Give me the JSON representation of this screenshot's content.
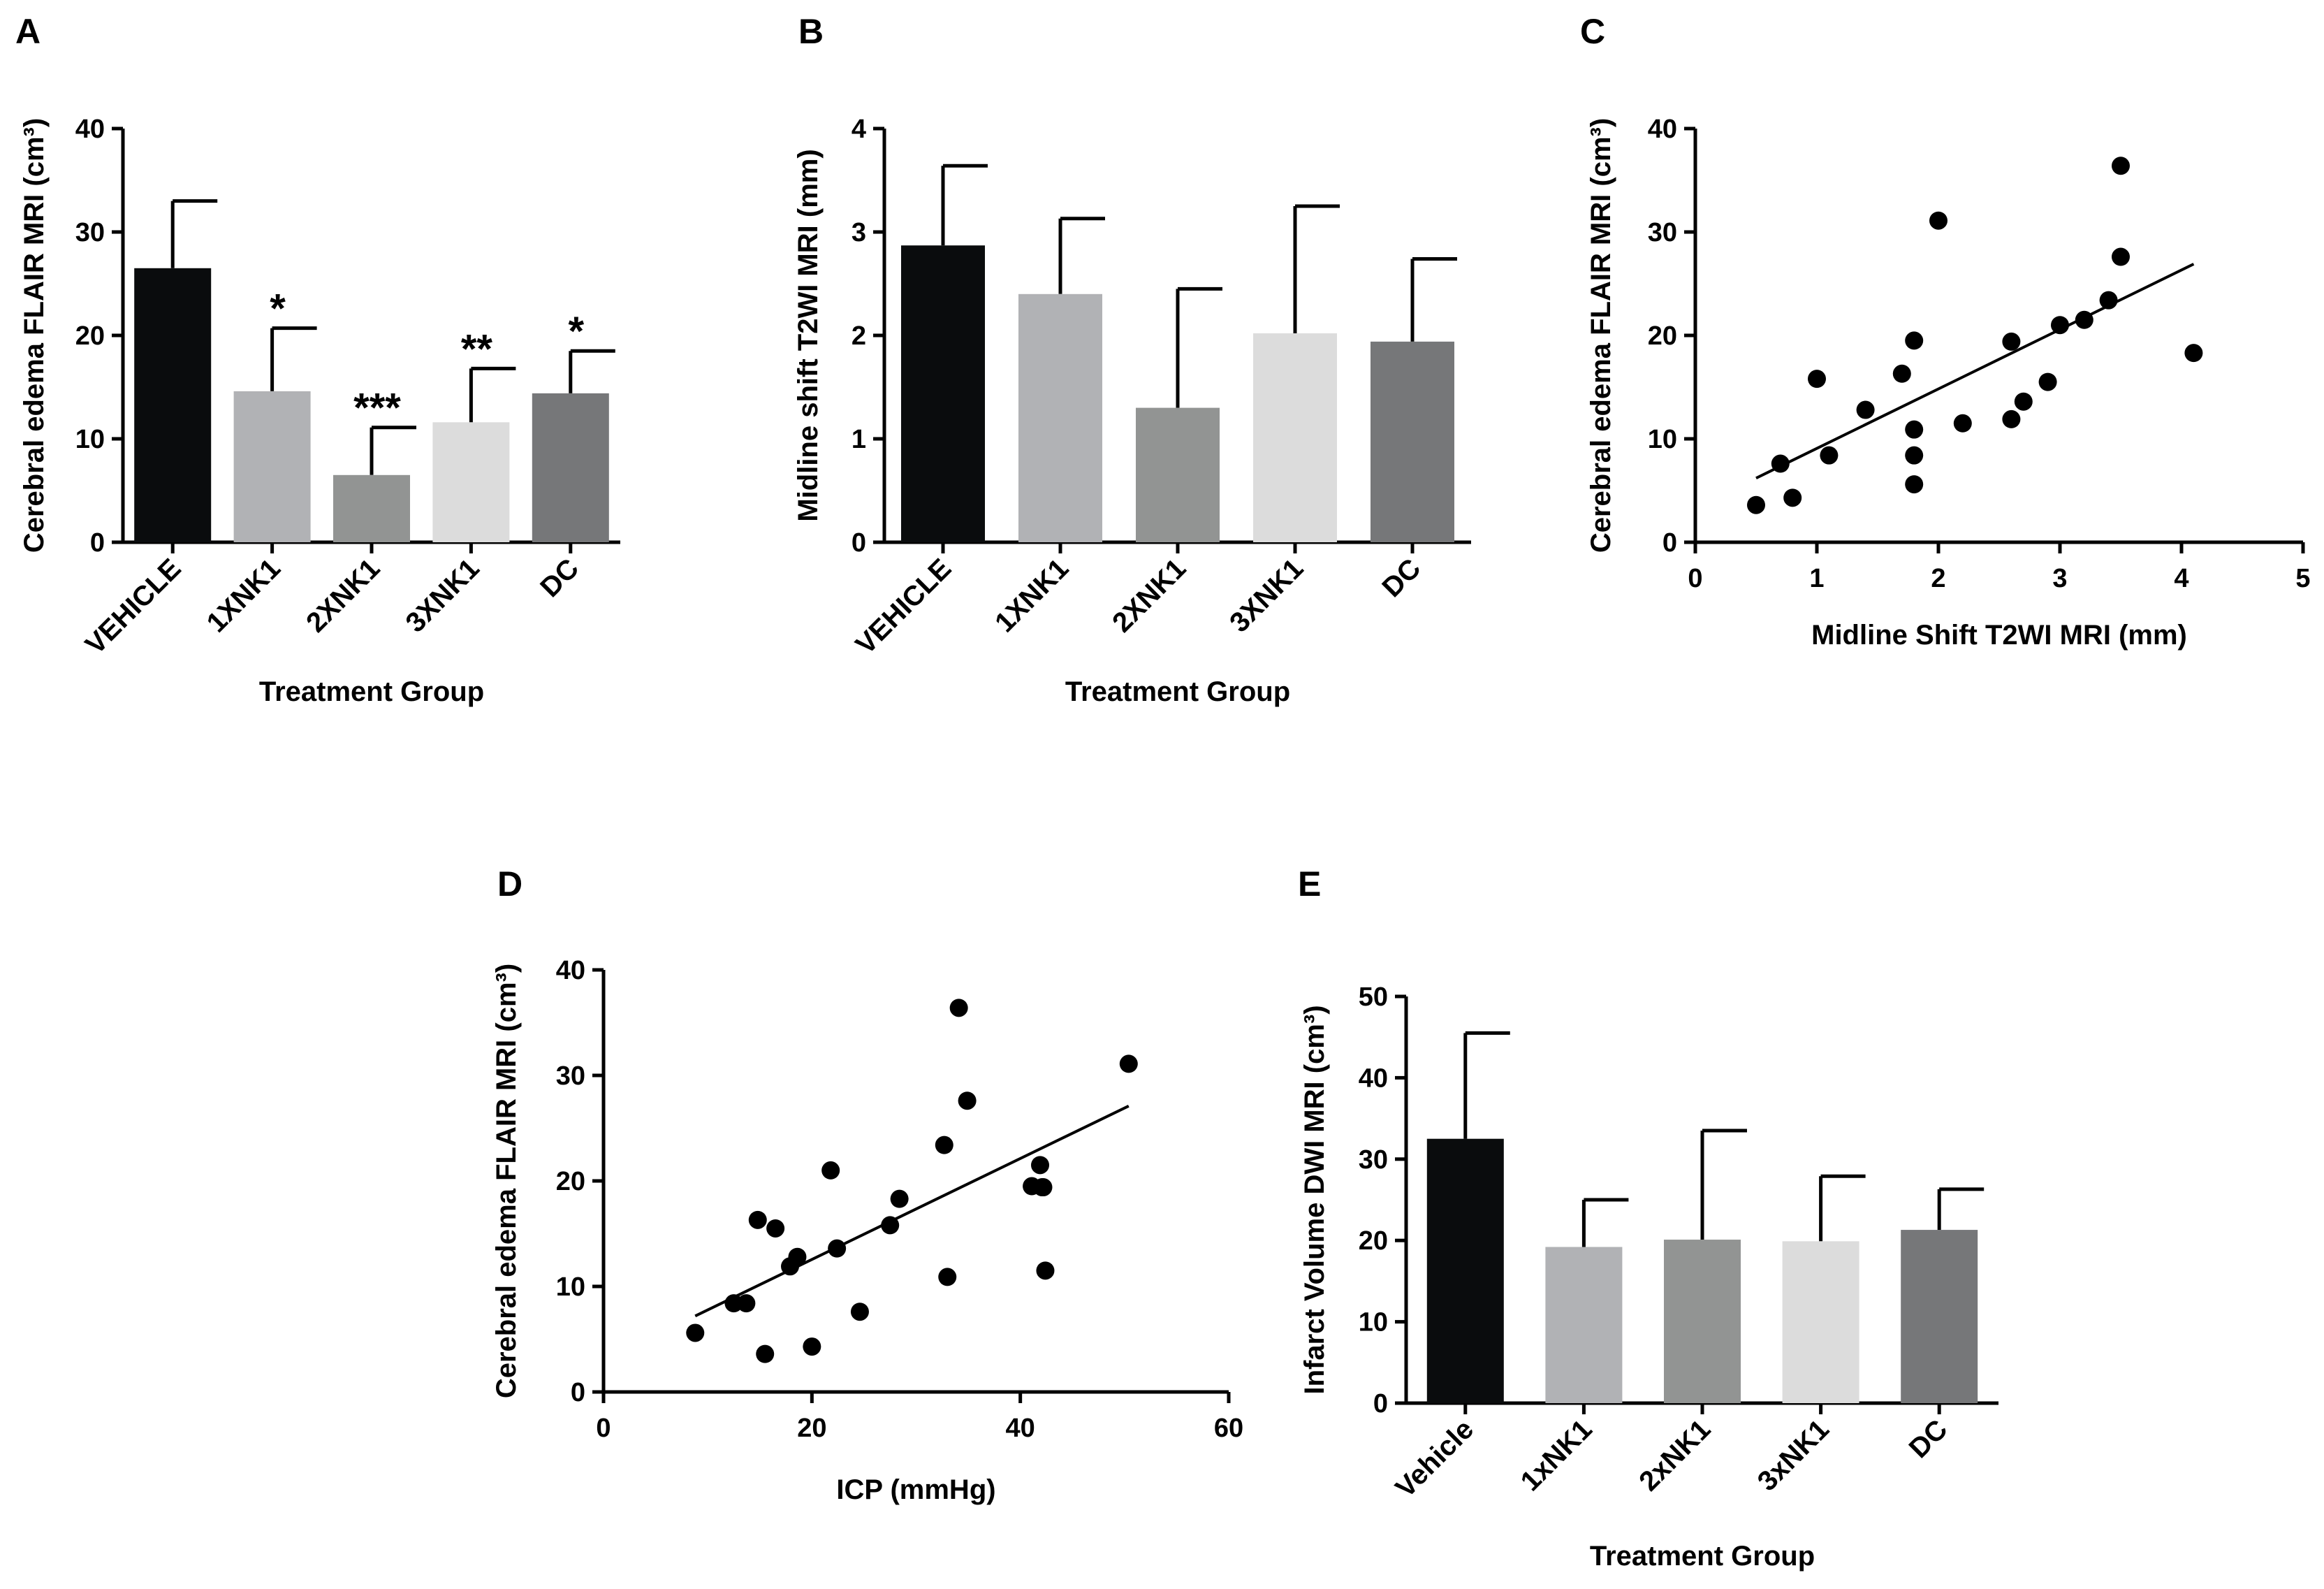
{
  "chart_data": [
    {
      "panel": "A",
      "type": "bar",
      "categories": [
        "VEHICLE",
        "1XNK1",
        "2XNK1",
        "3XNK1",
        "DC"
      ],
      "values": [
        26.5,
        14.6,
        6.5,
        11.6,
        14.4
      ],
      "errors": [
        6.5,
        6.1,
        4.6,
        5.2,
        4.1
      ],
      "bar_colors": [
        "#0a0c0d",
        "#b1b2b5",
        "#929493",
        "#dcdcdc",
        "#767779"
      ],
      "annotations": [
        "",
        "*",
        "***",
        "**",
        "*"
      ],
      "xlabel": "Treatment Group",
      "ylabel": "Cerebral edema FLAIR MRI (cm³)",
      "ylim": [
        0,
        40
      ],
      "yticks": [
        0,
        10,
        20,
        30,
        40
      ],
      "ytick_labels": [
        "0",
        "10",
        "20",
        "30",
        "40"
      ],
      "grid": false
    },
    {
      "panel": "B",
      "type": "bar",
      "categories": [
        "VEHICLE",
        "1XNK1",
        "2XNK1",
        "3XNK1",
        "DC"
      ],
      "values": [
        2.87,
        2.4,
        1.3,
        2.02,
        1.94
      ],
      "errors": [
        0.77,
        0.73,
        1.15,
        1.23,
        0.8
      ],
      "bar_colors": [
        "#0a0c0d",
        "#b1b2b5",
        "#929493",
        "#dcdcdc",
        "#767779"
      ],
      "xlabel": "Treatment Group",
      "ylabel": "Midline shift T2WI MRI (mm)",
      "ylim": [
        0,
        4
      ],
      "yticks": [
        0,
        1,
        2,
        3,
        4
      ],
      "ytick_labels": [
        "0",
        "1",
        "2",
        "3",
        "4"
      ],
      "grid": false
    },
    {
      "panel": "C",
      "type": "scatter",
      "x": [
        0.5,
        0.7,
        0.8,
        1.0,
        1.1,
        1.4,
        1.7,
        1.8,
        1.8,
        1.8,
        1.8,
        2.0,
        2.2,
        2.6,
        2.6,
        2.7,
        2.9,
        3.0,
        3.2,
        3.4,
        3.5,
        3.5,
        4.1
      ],
      "y": [
        3.6,
        7.6,
        4.3,
        15.8,
        8.4,
        12.8,
        16.3,
        19.5,
        10.9,
        8.4,
        5.6,
        31.1,
        11.5,
        19.4,
        11.9,
        13.6,
        15.5,
        21.0,
        21.5,
        23.4,
        27.6,
        36.4,
        18.3
      ],
      "fit_line": {
        "x": [
          0.5,
          4.1
        ],
        "y": [
          6.2,
          26.9
        ]
      },
      "xlabel": "Midline Shift T2WI MRI (mm)",
      "ylabel": "Cerebral edema FLAIR MRI (cm³)",
      "xlim": [
        0,
        5
      ],
      "ylim": [
        0,
        40
      ],
      "xticks": [
        0,
        1,
        2,
        3,
        4,
        5
      ],
      "xtick_labels": [
        "0",
        "1",
        "2",
        "3",
        "4",
        "5"
      ],
      "yticks": [
        0,
        10,
        20,
        30,
        40
      ],
      "ytick_labels": [
        "0",
        "10",
        "20",
        "30",
        "40"
      ],
      "grid": false
    },
    {
      "panel": "D",
      "type": "scatter",
      "x": [
        8.8,
        12.5,
        13.7,
        14.8,
        15.5,
        16.5,
        17.9,
        18.6,
        20.0,
        21.8,
        22.4,
        24.6,
        27.5,
        28.4,
        32.7,
        33.0,
        34.1,
        34.9,
        41.1,
        41.9,
        42.1,
        42.2,
        42.4,
        50.4
      ],
      "y": [
        5.6,
        8.4,
        8.4,
        16.3,
        3.6,
        15.5,
        11.9,
        12.8,
        4.3,
        21.0,
        13.6,
        7.6,
        15.8,
        18.3,
        23.4,
        10.9,
        36.4,
        27.6,
        19.5,
        21.5,
        19.4,
        19.4,
        11.5,
        31.1
      ],
      "fit_line": {
        "x": [
          8.8,
          50.4
        ],
        "y": [
          7.2,
          27.1
        ]
      },
      "xlabel": "ICP (mmHg)",
      "ylabel": "Cerebral edema FLAIR MRI (cm³)",
      "xlim": [
        0,
        60
      ],
      "ylim": [
        0,
        40
      ],
      "xticks": [
        0,
        20,
        40,
        60
      ],
      "xtick_labels": [
        "0",
        "20",
        "40",
        "60"
      ],
      "yticks": [
        0,
        10,
        20,
        30,
        40
      ],
      "ytick_labels": [
        "0",
        "10",
        "20",
        "30",
        "40"
      ],
      "grid": false
    },
    {
      "panel": "E",
      "type": "bar",
      "categories": [
        "Vehicle",
        "1xNK1",
        "2xNK1",
        "3xNK1",
        "DC"
      ],
      "values": [
        32.5,
        19.2,
        20.1,
        19.9,
        21.3
      ],
      "errors": [
        13.0,
        5.8,
        13.4,
        8.0,
        5.0
      ],
      "bar_colors": [
        "#0a0c0d",
        "#b1b2b5",
        "#929493",
        "#dcdcdc",
        "#767779"
      ],
      "xlabel": "Treatment Group",
      "ylabel": "Infarct Volume DWI MRI (cm³)",
      "ylim": [
        0,
        50
      ],
      "yticks": [
        0,
        10,
        20,
        30,
        40,
        50
      ],
      "ytick_labels": [
        "0",
        "10",
        "20",
        "30",
        "40",
        "50"
      ],
      "grid": false
    }
  ]
}
